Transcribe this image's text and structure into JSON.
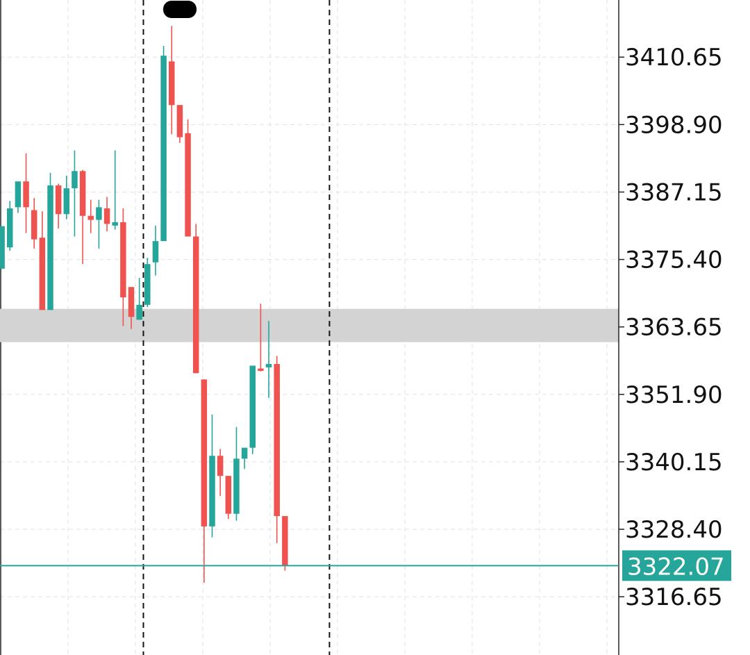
{
  "chart_data": {
    "type": "candlestick",
    "y_axis": {
      "position": "right",
      "ticks": [
        3410.65,
        3398.9,
        3387.15,
        3375.4,
        3363.65,
        3351.9,
        3340.15,
        3328.4,
        3316.65
      ],
      "tick_labels": [
        "3410.65",
        "3398.90",
        "3387.15",
        "3375.40",
        "3363.65",
        "3351.90",
        "3340.15",
        "3328.40",
        "3316.65"
      ],
      "range": [
        3306.5,
        3420.6
      ]
    },
    "grid": true,
    "current_price": {
      "value": 3322.07,
      "label": "3322.07"
    },
    "highlight_band": {
      "from": 3361.0,
      "to": 3366.8
    },
    "vertical_markers": [
      17.5,
      40.5
    ],
    "candles": [
      {
        "open": 3373.8,
        "high": 3381.2,
        "low": 3373.8,
        "close": 3381.2
      },
      {
        "open": 3377.5,
        "high": 3385.6,
        "low": 3376.9,
        "close": 3384.3
      },
      {
        "open": 3384.5,
        "high": 3389.0,
        "low": 3383.5,
        "close": 3389.0
      },
      {
        "open": 3389.0,
        "high": 3393.9,
        "low": 3380.0,
        "close": 3384.5
      },
      {
        "open": 3384.0,
        "high": 3386.1,
        "low": 3377.3,
        "close": 3378.9
      },
      {
        "open": 3379.2,
        "high": 3383.8,
        "low": 3366.6,
        "close": 3366.6
      },
      {
        "open": 3366.6,
        "high": 3390.5,
        "low": 3366.6,
        "close": 3388.3
      },
      {
        "open": 3388.3,
        "high": 3388.6,
        "low": 3380.8,
        "close": 3383.3
      },
      {
        "open": 3383.3,
        "high": 3390.0,
        "low": 3382.4,
        "close": 3387.8
      },
      {
        "open": 3387.8,
        "high": 3394.4,
        "low": 3379.4,
        "close": 3390.8
      },
      {
        "open": 3390.8,
        "high": 3391.0,
        "low": 3374.6,
        "close": 3383.0
      },
      {
        "open": 3383.0,
        "high": 3385.8,
        "low": 3380.0,
        "close": 3382.3
      },
      {
        "open": 3382.3,
        "high": 3385.8,
        "low": 3377.3,
        "close": 3384.5
      },
      {
        "open": 3384.3,
        "high": 3386.3,
        "low": 3380.3,
        "close": 3381.6
      },
      {
        "open": 3381.3,
        "high": 3394.4,
        "low": 3380.6,
        "close": 3381.9
      },
      {
        "open": 3381.9,
        "high": 3384.3,
        "low": 3363.8,
        "close": 3368.8
      },
      {
        "open": 3370.6,
        "high": 3370.6,
        "low": 3363.3,
        "close": 3365.4
      },
      {
        "open": 3364.9,
        "high": 3372.2,
        "low": 3364.9,
        "close": 3367.5
      },
      {
        "open": 3367.5,
        "high": 3375.7,
        "low": 3367.1,
        "close": 3374.6
      },
      {
        "open": 3374.9,
        "high": 3381.3,
        "low": 3372.6,
        "close": 3378.6
      },
      {
        "open": 3378.6,
        "high": 3412.6,
        "low": 3378.6,
        "close": 3410.9
      },
      {
        "open": 3409.9,
        "high": 3416.1,
        "low": 3397.2,
        "close": 3402.3
      },
      {
        "open": 3402.3,
        "high": 3402.3,
        "low": 3395.7,
        "close": 3396.7
      },
      {
        "open": 3397.4,
        "high": 3399.8,
        "low": 3379.4,
        "close": 3379.4
      },
      {
        "open": 3379.4,
        "high": 3381.6,
        "low": 3355.6,
        "close": 3355.6
      },
      {
        "open": 3354.5,
        "high": 3354.5,
        "low": 3319.1,
        "close": 3328.9
      },
      {
        "open": 3328.9,
        "high": 3348.4,
        "low": 3327.0,
        "close": 3341.2
      },
      {
        "open": 3341.2,
        "high": 3342.4,
        "low": 3334.2,
        "close": 3337.7
      },
      {
        "open": 3337.7,
        "high": 3337.7,
        "low": 3330.2,
        "close": 3331.1
      },
      {
        "open": 3331.1,
        "high": 3346.2,
        "low": 3329.9,
        "close": 3340.7
      },
      {
        "open": 3340.7,
        "high": 3342.6,
        "low": 3338.9,
        "close": 3342.6
      },
      {
        "open": 3342.6,
        "high": 3356.9,
        "low": 3341.5,
        "close": 3356.9
      },
      {
        "open": 3356.4,
        "high": 3367.7,
        "low": 3355.9,
        "close": 3356.0
      },
      {
        "open": 3356.6,
        "high": 3364.7,
        "low": 3351.3,
        "close": 3357.2
      },
      {
        "open": 3357.2,
        "high": 3358.6,
        "low": 3326.0,
        "close": 3330.7
      },
      {
        "open": 3330.7,
        "high": 3330.7,
        "low": 3321.2,
        "close": 3322.1
      }
    ]
  },
  "colors": {
    "up": "#26a69a",
    "down": "#ef5350",
    "grid": "#e2e2e2",
    "axis_line": "#222222",
    "band": "#d3d3d3",
    "price_line": "#26a69a",
    "price_tag_bg": "#26a69a",
    "marker_line": "#111111"
  }
}
